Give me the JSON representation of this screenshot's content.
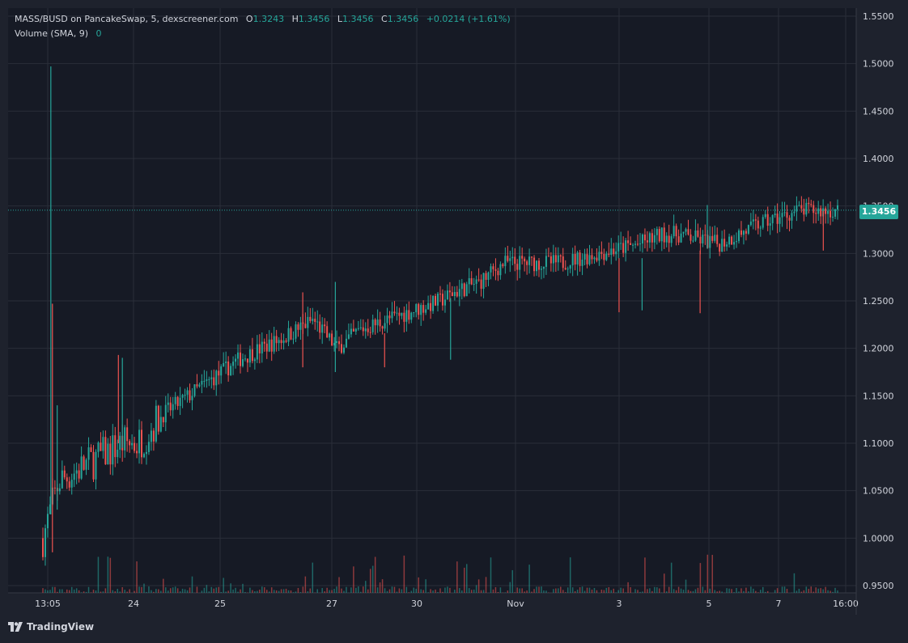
{
  "header": {
    "symbol": "MASS/BUSD on PancakeSwap, 5, dexscreener.com",
    "o_label": "O",
    "o_value": "1.3243",
    "h_label": "H",
    "h_value": "1.3456",
    "l_label": "L",
    "l_value": "1.3456",
    "c_label": "C",
    "c_value": "1.3456",
    "change": "+0.0214 (+1.61%)",
    "volume_label": "Volume (SMA, 9)",
    "volume_value": "0"
  },
  "last_price_label": "1.3456",
  "brand": "TradingView",
  "colors": {
    "up": "#26a69a",
    "down": "#ef5350",
    "background": "#161a25",
    "grid": "#2a2e39",
    "text": "#d1d4dc"
  },
  "chart_data": {
    "type": "candlestick",
    "interval": "5",
    "y_ticks": [
      "1.5500",
      "1.5000",
      "1.4500",
      "1.4000",
      "1.3500",
      "1.3000",
      "1.2500",
      "1.2000",
      "1.1500",
      "1.1000",
      "1.0500",
      "1.0000",
      "0.9500"
    ],
    "ylim": [
      0.945,
      1.557
    ],
    "x_ticks": [
      {
        "label": "13:05",
        "t": 0
      },
      {
        "label": "24",
        "t": 0.1
      },
      {
        "label": "25",
        "t": 0.2
      },
      {
        "label": "27",
        "t": 0.3
      },
      {
        "label": "30",
        "t": 0.4
      },
      {
        "label": "Nov",
        "t": 0.5
      },
      {
        "label": "3",
        "t": 0.6
      },
      {
        "label": "5",
        "t": 0.7
      },
      {
        "label": "7",
        "t": 0.8
      },
      {
        "label": "16:00",
        "t": 0.9
      }
    ],
    "last_price": 1.3456,
    "price_trend": [
      [
        0.0,
        1.0
      ],
      [
        0.01,
        1.03
      ],
      [
        0.02,
        1.06
      ],
      [
        0.06,
        1.08
      ],
      [
        0.1,
        1.1
      ],
      [
        0.12,
        1.1
      ],
      [
        0.15,
        1.13
      ],
      [
        0.2,
        1.16
      ],
      [
        0.25,
        1.19
      ],
      [
        0.3,
        1.21
      ],
      [
        0.34,
        1.23
      ],
      [
        0.37,
        1.2
      ],
      [
        0.4,
        1.22
      ],
      [
        0.45,
        1.235
      ],
      [
        0.5,
        1.25
      ],
      [
        0.52,
        1.26
      ],
      [
        0.55,
        1.27
      ],
      [
        0.58,
        1.29
      ],
      [
        0.6,
        1.29
      ],
      [
        0.65,
        1.29
      ],
      [
        0.7,
        1.3
      ],
      [
        0.75,
        1.31
      ],
      [
        0.78,
        1.32
      ],
      [
        0.8,
        1.32
      ],
      [
        0.85,
        1.31
      ],
      [
        0.9,
        1.33
      ],
      [
        0.95,
        1.345
      ],
      [
        1.0,
        1.345
      ]
    ],
    "spikes": [
      {
        "t": 0.01,
        "high": 1.497,
        "low": 1.025
      },
      {
        "t": 0.012,
        "high": 1.247,
        "low": 0.985
      },
      {
        "t": 0.018,
        "high": 1.14,
        "low": 1.03
      },
      {
        "t": 0.095,
        "high": 1.193,
        "low": 1.1
      },
      {
        "t": 0.1,
        "high": 1.19,
        "low": 1.095
      },
      {
        "t": 0.327,
        "high": 1.259,
        "low": 1.18
      },
      {
        "t": 0.368,
        "high": 1.27,
        "low": 1.175
      },
      {
        "t": 0.43,
        "high": 1.216,
        "low": 1.18
      },
      {
        "t": 0.513,
        "high": 1.253,
        "low": 1.188
      },
      {
        "t": 0.725,
        "high": 1.295,
        "low": 1.238
      },
      {
        "t": 0.754,
        "high": 1.295,
        "low": 1.24
      },
      {
        "t": 0.827,
        "high": 1.303,
        "low": 1.237
      },
      {
        "t": 0.836,
        "high": 1.351,
        "low": 1.305
      },
      {
        "t": 0.982,
        "high": 1.345,
        "low": 1.303
      }
    ]
  }
}
